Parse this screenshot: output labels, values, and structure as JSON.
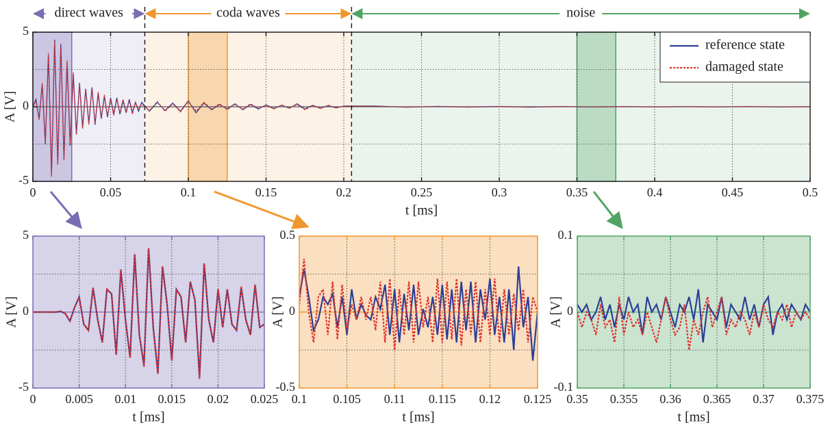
{
  "chart_data": [
    {
      "type": "line",
      "xlabel": "t [ms]",
      "ylabel": "A [V]",
      "xlim": [
        0,
        0.5
      ],
      "ylim": [
        -5,
        5
      ],
      "xticks": [
        0,
        0.05,
        0.1,
        0.15,
        0.2,
        0.25,
        0.3,
        0.35,
        0.4,
        0.45,
        0.5
      ],
      "yticks": [
        -5,
        0,
        5
      ],
      "ygrid": [
        -2.5,
        2.5
      ],
      "grid": true,
      "legend": "upper right",
      "regions": [
        {
          "label": "direct waves",
          "span": [
            0,
            0.072
          ],
          "zoom": [
            0,
            0.025
          ],
          "color": "#7a6db3"
        },
        {
          "label": "coda waves",
          "span": [
            0.072,
            0.205
          ],
          "zoom": [
            0.1,
            0.125
          ],
          "color": "#f0962f"
        },
        {
          "label": "noise",
          "span": [
            0.205,
            0.5
          ],
          "zoom": [
            0.35,
            0.375
          ],
          "color": "#4fa463"
        }
      ],
      "x": [
        0,
        0.002,
        0.004,
        0.006,
        0.008,
        0.01,
        0.012,
        0.014,
        0.016,
        0.018,
        0.02,
        0.022,
        0.024,
        0.026,
        0.028,
        0.03,
        0.032,
        0.034,
        0.036,
        0.038,
        0.04,
        0.042,
        0.044,
        0.046,
        0.048,
        0.05,
        0.052,
        0.054,
        0.056,
        0.058,
        0.06,
        0.062,
        0.064,
        0.066,
        0.068,
        0.07,
        0.075,
        0.08,
        0.085,
        0.09,
        0.095,
        0.1,
        0.105,
        0.11,
        0.115,
        0.12,
        0.125,
        0.13,
        0.135,
        0.14,
        0.145,
        0.15,
        0.155,
        0.16,
        0.165,
        0.17,
        0.175,
        0.18,
        0.185,
        0.19,
        0.195,
        0.2,
        0.22,
        0.24,
        0.26,
        0.28,
        0.3,
        0.32,
        0.34,
        0.36,
        0.38,
        0.4,
        0.42,
        0.44,
        0.46,
        0.48,
        0.5
      ],
      "series": [
        {
          "name": "reference state",
          "color": "#2b3f96",
          "style": "solid",
          "values": [
            0,
            0.5,
            -0.8,
            1.5,
            -2.5,
            3.5,
            -4.6,
            4.5,
            -3.8,
            4.2,
            -3.5,
            3,
            -2.6,
            2.2,
            -1.8,
            1.6,
            -1.4,
            1.2,
            -1.1,
            1.3,
            -1.2,
            0.9,
            -0.8,
            0.7,
            -0.7,
            0.6,
            -0.5,
            0.6,
            -0.5,
            0.4,
            -0.4,
            0.5,
            -0.4,
            0.3,
            -0.3,
            0.3,
            -0.3,
            0.3,
            -0.25,
            0.25,
            -0.3,
            0.4,
            -0.4,
            0.25,
            -0.2,
            0.15,
            -0.15,
            0.2,
            -0.2,
            0.15,
            -0.15,
            0.12,
            -0.12,
            0.1,
            -0.1,
            0.2,
            -0.15,
            0.1,
            -0.1,
            0.08,
            -0.08,
            0.05,
            0.05,
            -0.03,
            0.02,
            -0.02,
            0.02,
            -0.02,
            0.01,
            -0.01,
            0.01,
            -0.01,
            0.01,
            -0.01,
            0.01,
            -0.01,
            0
          ]
        },
        {
          "name": "damaged state",
          "color": "#e0302b",
          "style": "dashed",
          "values": [
            0,
            0.4,
            -0.9,
            1.6,
            -2.4,
            3.6,
            -4.7,
            4.4,
            -3.9,
            4.1,
            -3.6,
            3.1,
            -2.5,
            2.3,
            -1.9,
            1.5,
            -1.5,
            1.1,
            -1.2,
            1.2,
            -1.1,
            1.0,
            -0.7,
            0.8,
            -0.6,
            0.5,
            -0.6,
            0.5,
            -0.4,
            0.5,
            -0.3,
            0.4,
            -0.5,
            0.3,
            -0.2,
            0.2,
            -0.25,
            0.35,
            -0.3,
            0.2,
            -0.35,
            0.35,
            -0.3,
            0.3,
            -0.15,
            0.2,
            -0.2,
            0.15,
            -0.15,
            0.2,
            -0.1,
            0.1,
            -0.15,
            0.12,
            -0.08,
            0.15,
            -0.2,
            0.08,
            -0.12,
            0.1,
            -0.06,
            0.04,
            0.04,
            -0.02,
            0.03,
            -0.02,
            0.01,
            -0.03,
            0.02,
            -0.01,
            0.02,
            -0.02,
            0.01,
            -0.01,
            0.02,
            -0.01,
            0
          ]
        }
      ]
    },
    {
      "type": "line",
      "xlabel": "t [ms]",
      "ylabel": "A [V]",
      "color": "#7a6db3",
      "xlim": [
        0,
        0.025
      ],
      "ylim": [
        -5,
        5
      ],
      "xticks": [
        0,
        0.005,
        0.01,
        0.015,
        0.02,
        0.025
      ],
      "yticks": [
        -5,
        0,
        5
      ],
      "ygrid": [
        -2.5,
        2.5
      ],
      "grid": true,
      "x": [
        0,
        0.0005,
        0.001,
        0.0015,
        0.002,
        0.0025,
        0.003,
        0.0035,
        0.004,
        0.0045,
        0.005,
        0.0055,
        0.006,
        0.0065,
        0.007,
        0.0075,
        0.008,
        0.0085,
        0.009,
        0.0095,
        0.01,
        0.0105,
        0.011,
        0.0115,
        0.012,
        0.0125,
        0.013,
        0.0135,
        0.014,
        0.0145,
        0.015,
        0.0155,
        0.016,
        0.0165,
        0.017,
        0.0175,
        0.018,
        0.0185,
        0.019,
        0.0195,
        0.02,
        0.0205,
        0.021,
        0.0215,
        0.022,
        0.0225,
        0.023,
        0.0235,
        0.024,
        0.0245,
        0.025
      ],
      "series": [
        {
          "name": "reference state",
          "color": "#2b3f96",
          "style": "solid",
          "values": [
            0,
            0,
            0,
            0,
            0,
            0,
            0.05,
            -0.1,
            -0.6,
            0.3,
            1.0,
            -0.8,
            -1.2,
            1.6,
            -0.5,
            -2.0,
            1.5,
            1.2,
            -2.8,
            2.8,
            -0.5,
            -3.0,
            3.8,
            -1.5,
            -3.5,
            4.2,
            -1.0,
            -4.0,
            3.0,
            0.5,
            -3.2,
            1.5,
            1.0,
            -2.0,
            2.0,
            0.8,
            -4.3,
            3.2,
            -0.5,
            -2.0,
            1.5,
            -1.0,
            1.5,
            -0.8,
            -1.2,
            1.6,
            -0.5,
            -1.5,
            1.8,
            -1.0,
            -0.8
          ]
        },
        {
          "name": "damaged state",
          "color": "#e0302b",
          "style": "dashed",
          "values": [
            0,
            0,
            0,
            0,
            0,
            0,
            0.05,
            -0.1,
            -0.6,
            0.3,
            1.0,
            -0.8,
            -1.2,
            1.6,
            -0.5,
            -2.0,
            1.5,
            1.2,
            -2.8,
            2.8,
            -0.5,
            -3.0,
            3.8,
            -1.5,
            -3.6,
            4.2,
            -1.0,
            -4.1,
            3.0,
            0.5,
            -3.2,
            1.5,
            1.0,
            -2.0,
            2.0,
            0.8,
            -4.4,
            3.2,
            -0.5,
            -2.0,
            1.5,
            -1.0,
            1.5,
            -0.8,
            -1.2,
            1.7,
            -0.5,
            -1.5,
            1.8,
            -1.0,
            -0.8
          ]
        }
      ]
    },
    {
      "type": "line",
      "xlabel": "t [ms]",
      "ylabel": "A [V]",
      "color": "#f0962f",
      "xlim": [
        0.1,
        0.125
      ],
      "ylim": [
        -0.5,
        0.5
      ],
      "xticks": [
        0.1,
        0.105,
        0.11,
        0.115,
        0.12,
        0.125
      ],
      "yticks": [
        -0.5,
        0,
        0.5
      ],
      "ygrid": [
        -0.25,
        0.25
      ],
      "grid": true,
      "x": [
        0.1,
        0.1005,
        0.101,
        0.1015,
        0.102,
        0.1025,
        0.103,
        0.1035,
        0.104,
        0.1045,
        0.105,
        0.1055,
        0.106,
        0.1065,
        0.107,
        0.1075,
        0.108,
        0.1085,
        0.109,
        0.1095,
        0.11,
        0.1105,
        0.111,
        0.1115,
        0.112,
        0.1125,
        0.113,
        0.1135,
        0.114,
        0.1145,
        0.115,
        0.1155,
        0.116,
        0.1165,
        0.117,
        0.1175,
        0.118,
        0.1185,
        0.119,
        0.1195,
        0.12,
        0.1205,
        0.121,
        0.1215,
        0.122,
        0.1225,
        0.123,
        0.1235,
        0.124,
        0.1245,
        0.125
      ],
      "series": [
        {
          "name": "reference state",
          "color": "#2b3f96",
          "style": "solid",
          "values": [
            0.1,
            0.28,
            0.1,
            -0.12,
            -0.05,
            0.1,
            0.05,
            0.12,
            -0.1,
            0.1,
            -0.15,
            0.15,
            -0.05,
            0.05,
            -0.02,
            -0.05,
            0.1,
            0.02,
            0.18,
            -0.15,
            0.15,
            -0.2,
            0.12,
            -0.12,
            0.18,
            -0.15,
            0.02,
            -0.1,
            0.1,
            -0.15,
            0.18,
            -0.18,
            0.15,
            -0.2,
            0.2,
            -0.12,
            0.2,
            -0.2,
            0.15,
            -0.05,
            0.22,
            -0.15,
            0.1,
            -0.2,
            0.15,
            -0.25,
            0.3,
            -0.1,
            0.1,
            -0.32,
            0.0
          ]
        },
        {
          "name": "damaged state",
          "color": "#e0302b",
          "style": "dashed",
          "values": [
            0.05,
            0.35,
            0.0,
            -0.2,
            0.1,
            0.15,
            -0.15,
            0.2,
            -0.18,
            0.18,
            -0.12,
            0.05,
            -0.05,
            0.1,
            -0.05,
            0.1,
            -0.12,
            0.2,
            -0.2,
            0.22,
            -0.25,
            0.15,
            -0.15,
            0.2,
            -0.2,
            0.2,
            -0.1,
            0.1,
            -0.2,
            0.22,
            -0.2,
            0.2,
            -0.18,
            0.22,
            -0.22,
            0.15,
            -0.15,
            0.2,
            -0.2,
            0.15,
            -0.15,
            0.22,
            -0.2,
            0.15,
            -0.15,
            0.12,
            -0.12,
            0.15,
            -0.2,
            0.1,
            0.0
          ]
        }
      ]
    },
    {
      "type": "line",
      "xlabel": "t [ms]",
      "ylabel": "A [V]",
      "color": "#4fa463",
      "xlim": [
        0.35,
        0.375
      ],
      "ylim": [
        -0.1,
        0.1
      ],
      "xticks": [
        0.35,
        0.355,
        0.36,
        0.365,
        0.37,
        0.375
      ],
      "yticks": [
        -0.1,
        0,
        0.1
      ],
      "ygrid": [
        -0.05,
        0.05
      ],
      "grid": true,
      "x": [
        0.35,
        0.3505,
        0.351,
        0.3515,
        0.352,
        0.3525,
        0.353,
        0.3535,
        0.354,
        0.3545,
        0.355,
        0.3555,
        0.356,
        0.3565,
        0.357,
        0.3575,
        0.358,
        0.3585,
        0.359,
        0.3595,
        0.36,
        0.3605,
        0.361,
        0.3615,
        0.362,
        0.3625,
        0.363,
        0.3635,
        0.364,
        0.3645,
        0.365,
        0.3655,
        0.366,
        0.3665,
        0.367,
        0.3675,
        0.368,
        0.3685,
        0.369,
        0.3695,
        0.37,
        0.3705,
        0.371,
        0.3715,
        0.372,
        0.3725,
        0.373,
        0.3735,
        0.374,
        0.3745,
        0.375
      ],
      "series": [
        {
          "name": "reference state",
          "color": "#2b3f96",
          "style": "solid",
          "values": [
            0.01,
            0.0,
            0.01,
            -0.01,
            0.0,
            0.02,
            -0.01,
            0.01,
            -0.02,
            0.01,
            -0.01,
            0.02,
            0.0,
            0.01,
            -0.03,
            0.02,
            0.0,
            0.01,
            -0.01,
            0.02,
            0.0,
            -0.02,
            0.01,
            0.0,
            0.02,
            -0.01,
            0.03,
            -0.04,
            0.01,
            0.0,
            -0.01,
            0.02,
            -0.02,
            0.01,
            0.0,
            -0.01,
            0.02,
            -0.01,
            0.01,
            -0.02,
            0.01,
            0.02,
            -0.03,
            0.0,
            0.01,
            -0.01,
            0.01,
            0.0,
            -0.01,
            0.01,
            0.0
          ]
        },
        {
          "name": "damaged state",
          "color": "#e0302b",
          "style": "dashed",
          "values": [
            0.0,
            -0.02,
            0.0,
            -0.01,
            -0.03,
            0.01,
            -0.02,
            -0.01,
            -0.04,
            0.02,
            -0.03,
            0.0,
            -0.02,
            -0.01,
            -0.03,
            0.0,
            -0.02,
            -0.04,
            -0.01,
            0.02,
            -0.01,
            -0.03,
            -0.02,
            0.01,
            -0.05,
            -0.01,
            -0.03,
            0.0,
            0.02,
            -0.02,
            0.0,
            0.02,
            -0.03,
            -0.01,
            -0.02,
            0.0,
            -0.01,
            -0.03,
            0.0,
            -0.02,
            0.01,
            -0.01,
            -0.02,
            0.0,
            -0.01,
            0.01,
            -0.02,
            0.0,
            -0.01,
            0.0,
            -0.01
          ]
        }
      ]
    }
  ]
}
